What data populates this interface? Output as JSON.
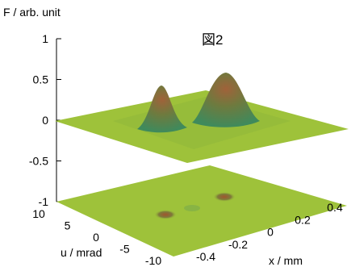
{
  "chart_data": {
    "type": "surface",
    "title": "図2",
    "zlabel": "F / arb. unit",
    "xlabel": "x / mm",
    "ylabel": "u / mrad",
    "z_ticks": [
      "1",
      "0.5",
      "0",
      "-0.5",
      "-1"
    ],
    "x_ticks": [
      "-0.4",
      "-0.2",
      "0",
      "0.2",
      "0.4"
    ],
    "y_ticks": [
      "10",
      "5",
      "0",
      "-5",
      "-10"
    ],
    "zlim": [
      -1,
      1
    ],
    "xlim": [
      -0.4,
      0.4
    ],
    "ylim": [
      -10,
      10
    ],
    "surface_level": 0,
    "contour_level": -1,
    "peaks": [
      {
        "x": -0.1,
        "u": -1.5,
        "height": 0.55
      },
      {
        "x": 0.15,
        "u": 1.5,
        "height": 0.6
      }
    ],
    "colors": {
      "surface": "#9ec23a",
      "peak_top": "#a0623a",
      "peak_mid": "#3f8a5c",
      "contour_spot": "#a0562e"
    }
  }
}
